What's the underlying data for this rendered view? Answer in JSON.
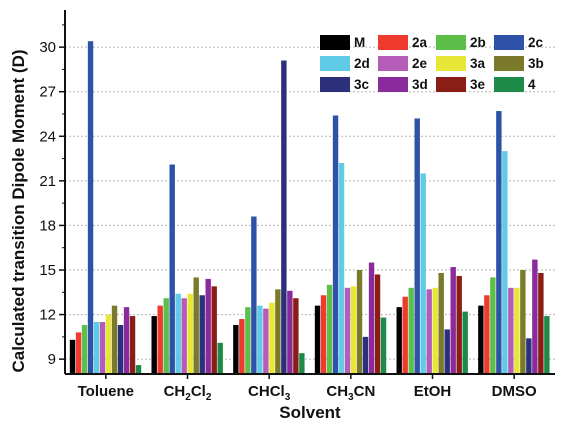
{
  "chart_data": {
    "type": "bar",
    "title": "",
    "xlabel": "Solvent",
    "ylabel": "Calculated transition Dipole Moment (D)",
    "ylim": [
      8,
      32.5
    ],
    "yticks": [
      9,
      12,
      15,
      18,
      21,
      24,
      27,
      30
    ],
    "grid": "horizontal dotted",
    "legend_position": "top-right",
    "categories": [
      {
        "parts": [
          {
            "t": "Toluene"
          }
        ]
      },
      {
        "parts": [
          {
            "t": "CH"
          },
          {
            "t": "2",
            "sub": true
          },
          {
            "t": "Cl"
          },
          {
            "t": "2",
            "sub": true
          }
        ]
      },
      {
        "parts": [
          {
            "t": "CHCl"
          },
          {
            "t": "3",
            "sub": true
          }
        ]
      },
      {
        "parts": [
          {
            "t": "CH"
          },
          {
            "t": "3",
            "sub": true
          },
          {
            "t": "CN"
          }
        ]
      },
      {
        "parts": [
          {
            "t": "EtOH"
          }
        ]
      },
      {
        "parts": [
          {
            "t": "DMSO"
          }
        ]
      }
    ],
    "series": [
      {
        "name": "M",
        "color": "#000000",
        "values": [
          10.3,
          11.9,
          11.3,
          12.6,
          12.5,
          12.6
        ]
      },
      {
        "name": "2a",
        "color": "#ee3b2e",
        "values": [
          10.8,
          12.6,
          11.7,
          13.3,
          13.2,
          13.3
        ]
      },
      {
        "name": "2b",
        "color": "#5cbf4a",
        "values": [
          11.3,
          13.1,
          12.5,
          14.0,
          13.8,
          14.5
        ]
      },
      {
        "name": "2c",
        "color": "#2e52a8",
        "values": [
          30.4,
          22.1,
          18.6,
          25.4,
          25.2,
          25.7
        ]
      },
      {
        "name": "2d",
        "color": "#5fcbe6",
        "values": [
          11.5,
          13.4,
          12.6,
          22.2,
          21.5,
          23.0
        ]
      },
      {
        "name": "2e",
        "color": "#b55cb8",
        "values": [
          11.5,
          13.1,
          12.4,
          13.8,
          13.7,
          13.8
        ]
      },
      {
        "name": "3a",
        "color": "#e8e637",
        "values": [
          12.0,
          13.4,
          12.8,
          13.9,
          13.8,
          13.8
        ]
      },
      {
        "name": "3b",
        "color": "#7a7a2a",
        "values": [
          12.6,
          14.5,
          13.7,
          15.0,
          14.8,
          15.0
        ]
      },
      {
        "name": "3c",
        "color": "#2c2f7a",
        "values": [
          11.3,
          13.3,
          29.1,
          10.5,
          11.0,
          10.4
        ]
      },
      {
        "name": "3d",
        "color": "#8a2a9c",
        "values": [
          12.5,
          14.4,
          13.6,
          15.5,
          15.2,
          15.7
        ]
      },
      {
        "name": "3e",
        "color": "#8a1d16",
        "values": [
          11.9,
          13.9,
          13.1,
          14.7,
          14.6,
          14.8
        ]
      },
      {
        "name": "4",
        "color": "#1d8a47",
        "values": [
          8.6,
          10.1,
          9.4,
          11.8,
          12.2,
          11.9
        ]
      }
    ]
  }
}
